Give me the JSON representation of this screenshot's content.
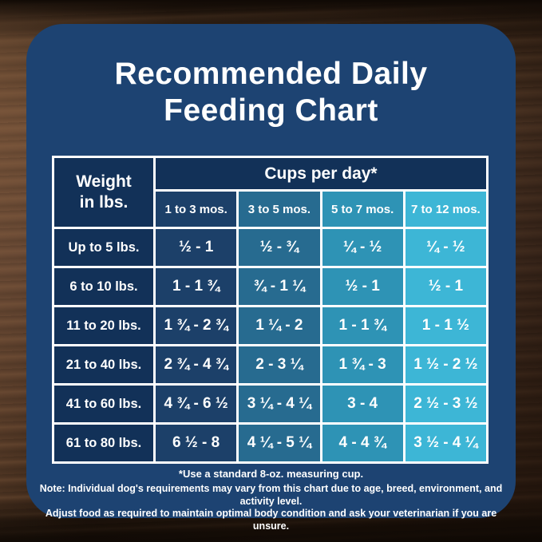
{
  "title": {
    "line1": "Recommended Daily",
    "line2": "Feeding Chart"
  },
  "table": {
    "weight_header": "Weight in lbs.",
    "cups_header": "Cups per day*",
    "age_columns": [
      "1 to 3 mos.",
      "3 to 5 mos.",
      "5 to 7 mos.",
      "7 to 12 mos."
    ],
    "rows": [
      {
        "weight": "Up to 5 lbs.",
        "values": [
          "½ - 1",
          "½ - ¾",
          "¼ - ½",
          "¼ - ½"
        ]
      },
      {
        "weight": "6 to 10 lbs.",
        "values": [
          "1 - 1 ¾",
          "¾ - 1 ¼",
          "½ - 1",
          "½ - 1"
        ]
      },
      {
        "weight": "11 to 20 lbs.",
        "values": [
          "1 ¾ - 2 ¾",
          "1 ¼ - 2",
          "1 - 1 ¾",
          "1 - 1 ½"
        ]
      },
      {
        "weight": "21 to 40 lbs.",
        "values": [
          "2 ¾ - 4 ¾",
          "2 - 3 ¼",
          "1 ¾ - 3",
          "1 ½ - 2 ½"
        ]
      },
      {
        "weight": "41 to 60 lbs.",
        "values": [
          "4 ¾ - 6 ½",
          "3 ¼ - 4 ¼",
          "3 - 4",
          "2 ½ - 3 ½"
        ]
      },
      {
        "weight": "61 to 80 lbs.",
        "values": [
          "6 ½ - 8",
          "4 ¼ - 5 ¼",
          "4 - 4 ¾",
          "3 ½ - 4 ¼"
        ]
      }
    ]
  },
  "footnotes": {
    "cup_note": "*Use a standard 8-oz. measuring cup.",
    "note_line1": "Note: Individual dog's requirements may vary from this chart due to age, breed, environment, and activity level.",
    "note_line2": "Adjust food as required to maintain optimal body condition and ask your veterinarian if you are unsure."
  },
  "colors": {
    "card_background": "#1d4372",
    "header_cell": "#123158",
    "column_1to3": "#1c4069",
    "column_3to5": "#276b90",
    "column_5to7": "#2e93b5",
    "column_7to12": "#3db6d6",
    "grid_lines": "#ffffff",
    "text": "#ffffff"
  },
  "chart_data": {
    "type": "table",
    "title": "Recommended Daily Feeding Chart",
    "unit": "cups per day",
    "columns": [
      "Weight in lbs.",
      "1 to 3 mos.",
      "3 to 5 mos.",
      "5 to 7 mos.",
      "7 to 12 mos."
    ],
    "rows": [
      [
        "Up to 5 lbs.",
        "½ - 1",
        "½ - ¾",
        "¼ - ½",
        "¼ - ½"
      ],
      [
        "6 to 10 lbs.",
        "1 - 1 ¾",
        "¾ - 1 ¼",
        "½ - 1",
        "½ - 1"
      ],
      [
        "11 to 20 lbs.",
        "1 ¾ - 2 ¾",
        "1 ¼ - 2",
        "1 - 1 ¾",
        "1 - 1 ½"
      ],
      [
        "21 to 40 lbs.",
        "2 ¾ - 4 ¾",
        "2 - 3 ¼",
        "1 ¾ - 3",
        "1 ½ - 2 ½"
      ],
      [
        "41 to 60 lbs.",
        "4 ¾ - 6 ½",
        "3 ¼ - 4 ¼",
        "3 - 4",
        "2 ½ - 3 ½"
      ],
      [
        "61 to 80 lbs.",
        "6 ½ - 8",
        "4 ¼ - 5 ¼",
        "4 - 4 ¾",
        "3 ½ - 4 ¼"
      ]
    ],
    "notes": [
      "*Use a standard 8-oz. measuring cup.",
      "Note: Individual dog's requirements may vary from this chart due to age, breed, environment, and activity level.",
      "Adjust food as required to maintain optimal body condition and ask your veterinarian if you are unsure."
    ]
  }
}
